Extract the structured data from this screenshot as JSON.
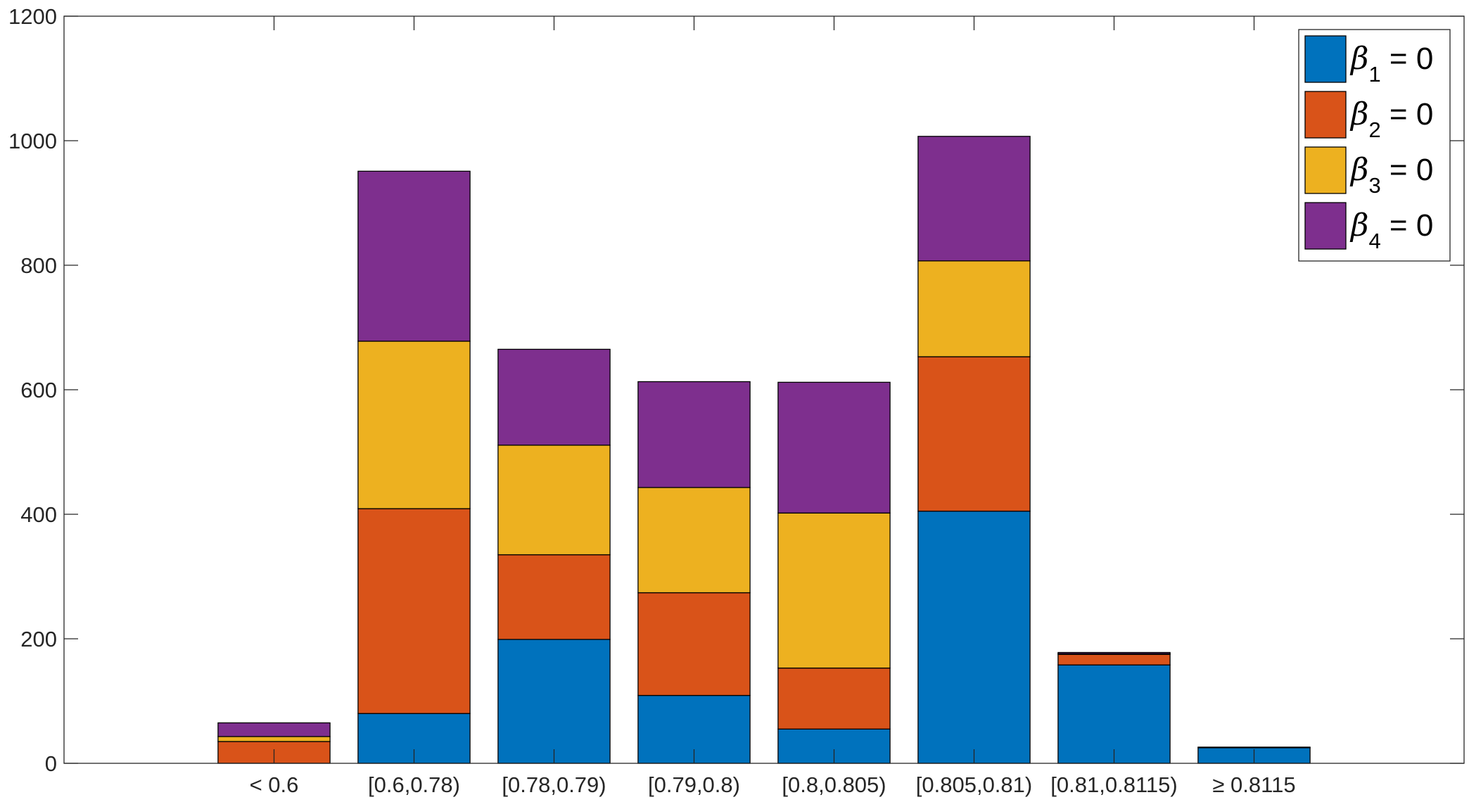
{
  "chart_data": {
    "type": "bar",
    "stacked": true,
    "title": "",
    "xlabel": "",
    "ylabel": "",
    "ylim": [
      0,
      1200
    ],
    "yticks": [
      0,
      200,
      400,
      600,
      800,
      1000,
      1200
    ],
    "categories": [
      "< 0.6",
      "[0.6,0.78)",
      "[0.78,0.79)",
      "[0.79,0.8)",
      "[0.8,0.805)",
      "[0.805,0.81)",
      "[0.81,0.8115)",
      "≥ 0.8115"
    ],
    "series": [
      {
        "name": "β1 = 0",
        "symbol": "β",
        "subscript": "1",
        "rhs": " = 0",
        "color": "#0072BD",
        "values": [
          0,
          80,
          199,
          109,
          55,
          405,
          158,
          25
        ]
      },
      {
        "name": "β2 = 0",
        "symbol": "β",
        "subscript": "2",
        "rhs": " = 0",
        "color": "#D95319",
        "values": [
          35,
          329,
          136,
          165,
          98,
          248,
          17,
          0
        ]
      },
      {
        "name": "β3 = 0",
        "symbol": "β",
        "subscript": "3",
        "rhs": " = 0",
        "color": "#EDB120",
        "values": [
          8,
          269,
          176,
          169,
          249,
          154,
          1,
          0
        ]
      },
      {
        "name": "β4 = 0",
        "symbol": "β",
        "subscript": "4",
        "rhs": " = 0",
        "color": "#7E2F8E",
        "values": [
          22,
          273,
          154,
          170,
          210,
          200,
          2,
          1
        ]
      }
    ],
    "legend_position": "top-right",
    "grid": false
  }
}
